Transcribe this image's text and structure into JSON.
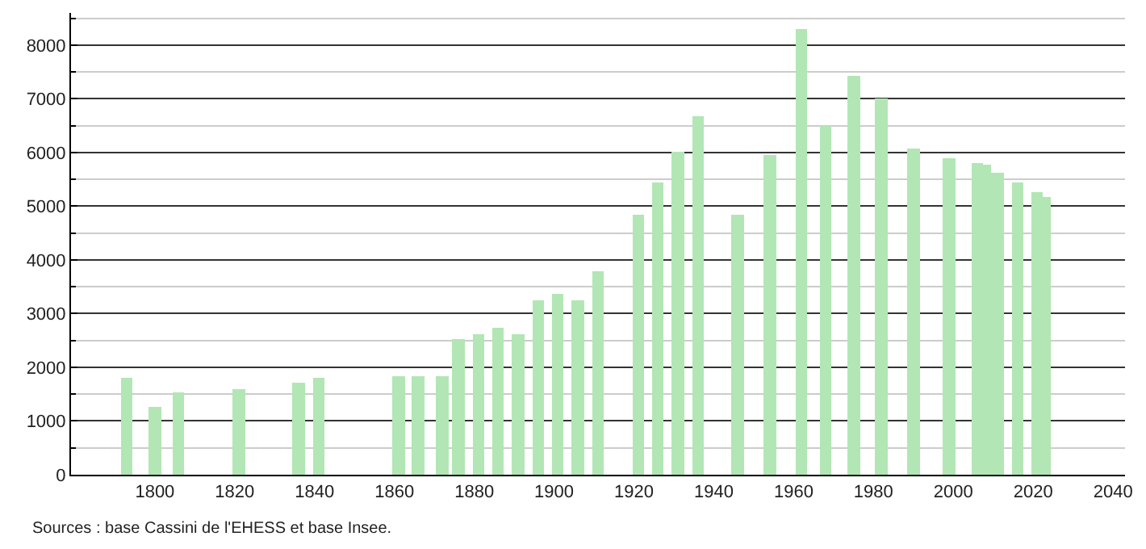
{
  "chart_data": {
    "type": "bar",
    "x": [
      1793,
      1800,
      1806,
      1821,
      1836,
      1841,
      1861,
      1866,
      1872,
      1876,
      1881,
      1886,
      1891,
      1896,
      1901,
      1906,
      1911,
      1921,
      1926,
      1931,
      1936,
      1946,
      1954,
      1962,
      1968,
      1975,
      1982,
      1990,
      1999,
      2006,
      2008,
      2011,
      2016,
      2021,
      2023
    ],
    "values": [
      1800,
      1260,
      1540,
      1580,
      1710,
      1810,
      1820,
      1820,
      1820,
      2540,
      2620,
      2740,
      2620,
      3240,
      3360,
      3240,
      3800,
      4840,
      5450,
      6020,
      6670,
      4840,
      5950,
      8310,
      6490,
      7420,
      7010,
      6070,
      5900,
      5800,
      5780,
      5630,
      5430,
      5250,
      5160
    ],
    "color": "#b2e6b4",
    "xlim": [
      1779,
      2043
    ],
    "xticks": [
      1800,
      1820,
      1840,
      1860,
      1880,
      1900,
      1920,
      1940,
      1960,
      1980,
      2000,
      2020,
      2040
    ],
    "ylim": [
      0,
      8600
    ],
    "yticks": [
      0,
      1000,
      2000,
      3000,
      4000,
      5000,
      6000,
      7000,
      8000
    ],
    "grid": "y",
    "annotations": [
      "Sources : base Cassini de l'EHESS et base Insee."
    ]
  }
}
